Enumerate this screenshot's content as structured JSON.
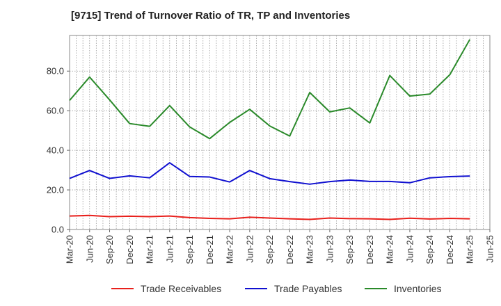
{
  "title": "[9715]  Trend of Turnover Ratio of TR, TP and Inventories",
  "chart_data": {
    "type": "line",
    "title": "[9715]  Trend of Turnover Ratio of TR, TP and Inventories",
    "xlabel": "",
    "ylabel": "",
    "ylim": [
      0,
      98
    ],
    "yticks": [
      0,
      20,
      40,
      60,
      80
    ],
    "ytick_labels": [
      "0.0",
      "20.0",
      "40.0",
      "60.0",
      "80.0"
    ],
    "xtick_labels": [
      "Mar-20",
      "Jun-20",
      "Sep-20",
      "Dec-20",
      "Mar-21",
      "Jun-21",
      "Sep-21",
      "Dec-21",
      "Mar-22",
      "Jun-22",
      "Sep-22",
      "Dec-22",
      "Mar-23",
      "Jun-23",
      "Sep-23",
      "Dec-23",
      "Mar-24",
      "Jun-24",
      "Sep-24",
      "Dec-24",
      "Mar-25",
      "Jun-25"
    ],
    "grid": true,
    "legend_position": "bottom",
    "x": [
      "Mar-20",
      "Jun-20",
      "Sep-20",
      "Dec-20",
      "Mar-21",
      "Jun-21",
      "Sep-21",
      "Dec-21",
      "Mar-22",
      "Jun-22",
      "Sep-22",
      "Dec-22",
      "Mar-23",
      "Jun-23",
      "Sep-23",
      "Dec-23",
      "Mar-24",
      "Jun-24",
      "Sep-24",
      "Dec-24",
      "Mar-25"
    ],
    "series": [
      {
        "name": "Trade Receivables",
        "color": "#e8201c",
        "values": [
          6.8,
          7.1,
          6.5,
          6.7,
          6.5,
          6.8,
          6.0,
          5.6,
          5.4,
          6.2,
          5.8,
          5.4,
          5.1,
          5.8,
          5.5,
          5.4,
          5.1,
          5.7,
          5.3,
          5.6,
          5.4
        ]
      },
      {
        "name": "Trade Payables",
        "color": "#1010d0",
        "values": [
          25.8,
          29.8,
          25.8,
          27.1,
          26.1,
          33.7,
          26.8,
          26.5,
          24.0,
          29.8,
          25.7,
          24.2,
          22.9,
          24.2,
          25.0,
          24.3,
          24.3,
          23.6,
          26.1,
          26.7,
          27.0
        ]
      },
      {
        "name": "Inventories",
        "color": "#2a8a2a",
        "values": [
          65.2,
          77.0,
          65.5,
          53.5,
          52.1,
          62.6,
          51.8,
          45.9,
          54.1,
          60.7,
          52.3,
          47.2,
          69.2,
          59.4,
          61.4,
          53.8,
          77.8,
          67.4,
          68.4,
          78.2,
          96.0
        ]
      }
    ]
  },
  "legend": [
    "Trade Receivables",
    "Trade Payables",
    "Inventories"
  ]
}
